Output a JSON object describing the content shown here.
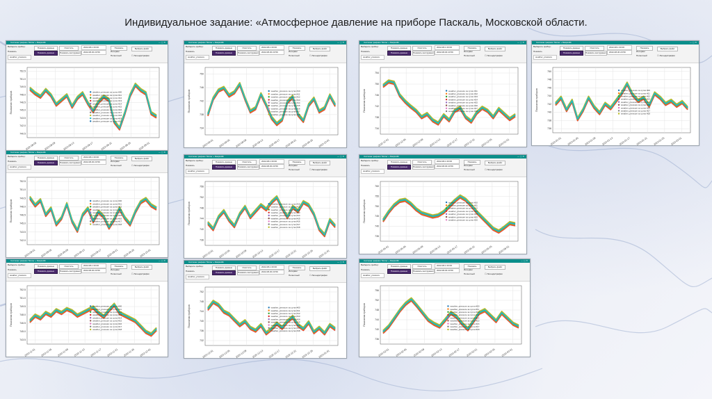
{
  "slide": {
    "title": "Индивидуальное задание: «Атмосферное давление на приборе Паскаль, Московской области."
  },
  "window": {
    "title": "Система графики Tkinter + Matplotlib",
    "label_device": "Выберите прибор:",
    "btn_show_data": "Показать данные",
    "btn_clear": "Очистить",
    "btn_show_instruments": "Показать инструменты",
    "label_show": "Показать",
    "selected_field": "weather_pressure",
    "date_start": "2022-08-1 00:00",
    "date_end": "2022-08-30 23:59",
    "btn_show": "Показать",
    "btn_choose_file": "Выбрать файл",
    "label_interval": "Интервал",
    "label_full": "Полнотный",
    "checkbox_label": "Легенда/график",
    "ylabel": "Показания приборов",
    "legend_prefix": "weather_pressure за сутки"
  },
  "chart_data": [
    {
      "type": "line",
      "ylabel": "Показания приборов",
      "legend_suffixes": [
        "#00",
        "#11",
        "#12",
        "#13",
        "#14",
        "#15",
        "#16",
        "#17",
        "#18",
        "#19",
        "#20"
      ],
      "series_colors": [
        "#1f77b4",
        "#ff7f0e",
        "#2ca02c",
        "#d62728",
        "#9467bd",
        "#8c564b",
        "#e377c2",
        "#7f7f7f",
        "#bcbd22",
        "#17becf"
      ],
      "y_ticks": [
        "752.5",
        "751.0",
        "749.5",
        "748.0",
        "746.5",
        "745.0",
        "743.5",
        "742.0",
        "740.5"
      ],
      "x_ticks": [
        "2022-08-05",
        "2022-08-09",
        "2022-08-13",
        "2022-08-17",
        "2022-08-21",
        "2022-08-25",
        "2022-09-01"
      ],
      "values": [
        0.72,
        0.65,
        0.6,
        0.7,
        0.62,
        0.48,
        0.55,
        0.62,
        0.45,
        0.58,
        0.65,
        0.5,
        0.38,
        0.52,
        0.6,
        0.55,
        0.22,
        0.12,
        0.35,
        0.62,
        0.78,
        0.7,
        0.65,
        0.35,
        0.3
      ]
    },
    {
      "type": "line",
      "ylabel": "Показания приборов",
      "legend_suffixes": [
        "#10",
        "#11",
        "#12",
        "#13",
        "#14",
        "#15",
        "#16",
        "#17",
        "#18"
      ],
      "series_colors": [
        "#1f77b4",
        "#ff7f0e",
        "#2ca02c",
        "#d62728",
        "#9467bd",
        "#8c564b",
        "#e377c2",
        "#7f7f7f",
        "#bcbd22",
        "#17becf"
      ],
      "y_ticks": [
        "750",
        "746",
        "742",
        "738",
        "734"
      ],
      "x_ticks": [
        "2022-09-01",
        "2022-09-05",
        "2022-09-09",
        "2022-09-13",
        "2022-09-17",
        "2022-09-21",
        "2022-09-25",
        "2022-10-01"
      ],
      "values": [
        0.3,
        0.55,
        0.68,
        0.72,
        0.6,
        0.65,
        0.78,
        0.55,
        0.35,
        0.4,
        0.62,
        0.45,
        0.25,
        0.15,
        0.22,
        0.5,
        0.58,
        0.3,
        0.2,
        0.45,
        0.55,
        0.35,
        0.4,
        0.6,
        0.45
      ]
    },
    {
      "type": "line",
      "ylabel": "Показания приборов",
      "legend_suffixes": [
        "#11",
        "#12",
        "#13",
        "#14",
        "#15",
        "#16",
        "#17",
        "#18"
      ],
      "series_colors": [
        "#1f77b4",
        "#ff7f0e",
        "#2ca02c",
        "#d62728",
        "#9467bd",
        "#8c564b",
        "#e377c2",
        "#7f7f7f",
        "#bcbd22",
        "#17becf"
      ],
      "y_ticks": [
        "754",
        "750",
        "746",
        "742",
        "738",
        "734"
      ],
      "x_ticks": [
        "2022-12-01",
        "2022-12-05",
        "2022-12-09",
        "2022-12-13",
        "2022-12-17",
        "2022-12-21",
        "2022-12-25",
        "2023-01-01"
      ],
      "values": [
        0.75,
        0.82,
        0.8,
        0.6,
        0.5,
        0.42,
        0.35,
        0.25,
        0.3,
        0.2,
        0.15,
        0.28,
        0.2,
        0.35,
        0.4,
        0.25,
        0.18,
        0.32,
        0.4,
        0.35,
        0.25,
        0.38,
        0.3,
        0.22,
        0.28
      ]
    },
    {
      "type": "line",
      "ylabel": "Показания приборов",
      "legend_suffixes": [
        "#00",
        "#11",
        "#12",
        "#13",
        "#14",
        "#15",
        "#16",
        "#17",
        "#18"
      ],
      "series_colors": [
        "#1f77b4",
        "#ff7f0e",
        "#2ca02c",
        "#d62728",
        "#9467bd",
        "#8c564b",
        "#e377c2",
        "#7f7f7f",
        "#bcbd22",
        "#17becf"
      ],
      "y_ticks": [
        "750",
        "748",
        "746",
        "744",
        "742",
        "740",
        "738",
        "736"
      ],
      "x_ticks": [
        "2023-01-01",
        "2023-01-05",
        "2023-01-09",
        "2023-01-13",
        "2023-01-17",
        "2023-01-21",
        "2023-01-25",
        "2023-02-01"
      ],
      "values": [
        0.45,
        0.55,
        0.35,
        0.5,
        0.2,
        0.35,
        0.55,
        0.4,
        0.3,
        0.45,
        0.38,
        0.5,
        0.62,
        0.78,
        0.6,
        0.5,
        0.55,
        0.42,
        0.62,
        0.55,
        0.45,
        0.5,
        0.42,
        0.48,
        0.38
      ]
    },
    {
      "type": "line",
      "ylabel": "Показания приборов",
      "legend_suffixes": [
        "#00",
        "#11",
        "#12",
        "#13",
        "#14",
        "#15",
        "#16",
        "#17",
        "#18"
      ],
      "series_colors": [
        "#1f77b4",
        "#ff7f0e",
        "#2ca02c",
        "#d62728",
        "#9467bd",
        "#8c564b",
        "#e377c2",
        "#7f7f7f",
        "#bcbd22",
        "#17becf"
      ],
      "y_ticks": [
        "752.5",
        "751.0",
        "749.5",
        "748.0",
        "746.5",
        "745.0",
        "743.5",
        "742.0"
      ],
      "x_ticks": [
        "2022-09-01",
        "2022-09-05",
        "2022-09-09",
        "2022-09-13",
        "2022-09-17",
        "2022-09-21",
        "2022-09-25",
        "2022-10-01"
      ],
      "values": [
        0.72,
        0.6,
        0.68,
        0.45,
        0.55,
        0.3,
        0.4,
        0.62,
        0.35,
        0.2,
        0.45,
        0.55,
        0.35,
        0.5,
        0.42,
        0.25,
        0.38,
        0.55,
        0.4,
        0.3,
        0.5,
        0.65,
        0.7,
        0.6,
        0.55
      ]
    },
    {
      "type": "line",
      "ylabel": "Показания приборов",
      "legend_suffixes": [
        "#10",
        "#11",
        "#12",
        "#13",
        "#14",
        "#15",
        "#16",
        "#17",
        "#18"
      ],
      "series_colors": [
        "#1f77b4",
        "#ff7f0e",
        "#2ca02c",
        "#d62728",
        "#9467bd",
        "#8c564b",
        "#e377c2",
        "#7f7f7f",
        "#bcbd22",
        "#17becf"
      ],
      "y_ticks": [
        "756",
        "752",
        "748",
        "744",
        "740",
        "736"
      ],
      "x_ticks": [
        "2022-10-01",
        "2022-10-05",
        "2022-10-09",
        "2022-10-13",
        "2022-10-17",
        "2022-10-21",
        "2022-10-25",
        "2022-11-01"
      ],
      "values": [
        0.35,
        0.25,
        0.45,
        0.55,
        0.4,
        0.3,
        0.5,
        0.62,
        0.45,
        0.55,
        0.65,
        0.58,
        0.7,
        0.78,
        0.6,
        0.45,
        0.62,
        0.55,
        0.7,
        0.65,
        0.5,
        0.25,
        0.15,
        0.4,
        0.3
      ]
    },
    {
      "type": "line",
      "ylabel": "Показания приборов",
      "legend_suffixes": [
        "#10",
        "#11",
        "#12",
        "#13",
        "#14",
        "#15",
        "#16"
      ],
      "series_colors": [
        "#1f77b4",
        "#ff7f0e",
        "#2ca02c",
        "#d62728",
        "#9467bd",
        "#8c564b",
        "#e377c2",
        "#7f7f7f",
        "#bcbd22",
        "#17becf"
      ],
      "y_ticks": [
        "760",
        "755",
        "750",
        "745",
        "740",
        "735"
      ],
      "x_ticks": [
        "2022-05-01",
        "2022-05-05",
        "2022-05-09",
        "2022-05-13",
        "2022-05-17",
        "2022-05-21",
        "2022-05-25",
        "2022-06-01"
      ],
      "values": [
        0.35,
        0.5,
        0.62,
        0.7,
        0.72,
        0.65,
        0.55,
        0.48,
        0.45,
        0.42,
        0.44,
        0.5,
        0.6,
        0.7,
        0.78,
        0.72,
        0.62,
        0.5,
        0.4,
        0.3,
        0.2,
        0.15,
        0.22,
        0.3,
        0.28
      ]
    },
    {
      "type": "line",
      "ylabel": "Показания приборов",
      "legend_suffixes": [
        "#00",
        "#11",
        "#12",
        "#13",
        "#14",
        "#15",
        "#16",
        "#17",
        "#18"
      ],
      "series_colors": [
        "#1f77b4",
        "#ff7f0e",
        "#2ca02c",
        "#d62728",
        "#9467bd",
        "#8c564b",
        "#e377c2",
        "#7f7f7f",
        "#bcbd22",
        "#17becf"
      ],
      "y_ticks": [
        "752.5",
        "751.0",
        "749.5",
        "748.0",
        "746.5",
        "745.0",
        "743.5"
      ],
      "x_ticks": [
        "2022-11-01",
        "2022-11-05",
        "2022-11-09",
        "2022-11-13",
        "2022-11-17",
        "2022-11-21",
        "2022-11-25",
        "2022-12-01"
      ],
      "values": [
        0.4,
        0.5,
        0.45,
        0.55,
        0.5,
        0.6,
        0.55,
        0.62,
        0.58,
        0.5,
        0.55,
        0.6,
        0.65,
        0.55,
        0.48,
        0.6,
        0.7,
        0.55,
        0.5,
        0.45,
        0.4,
        0.3,
        0.2,
        0.15,
        0.25
      ]
    },
    {
      "type": "line",
      "ylabel": "Показания приборов",
      "legend_suffixes": [
        "#00",
        "#11",
        "#12",
        "#13",
        "#14",
        "#15",
        "#16",
        "#17",
        "#18"
      ],
      "series_colors": [
        "#1f77b4",
        "#ff7f0e",
        "#2ca02c",
        "#d62728",
        "#9467bd",
        "#8c564b",
        "#e377c2",
        "#7f7f7f",
        "#bcbd22",
        "#17becf"
      ],
      "y_ticks": [
        "752",
        "748",
        "744",
        "740",
        "736",
        "732"
      ],
      "x_ticks": [
        "2022-12-01",
        "2022-12-05",
        "2022-12-09",
        "2022-12-13",
        "2022-12-17",
        "2022-12-21",
        "2022-12-25",
        "2023-01-01"
      ],
      "values": [
        0.65,
        0.78,
        0.72,
        0.6,
        0.55,
        0.45,
        0.35,
        0.42,
        0.3,
        0.25,
        0.35,
        0.2,
        0.28,
        0.38,
        0.3,
        0.42,
        0.5,
        0.35,
        0.28,
        0.4,
        0.22,
        0.3,
        0.2,
        0.35,
        0.28
      ]
    },
    {
      "type": "line",
      "ylabel": "Показания приборов",
      "legend_suffixes": [
        "#00",
        "#11",
        "#12",
        "#13",
        "#14",
        "#15",
        "#16",
        "#17",
        "#18"
      ],
      "series_colors": [
        "#1f77b4",
        "#ff7f0e",
        "#2ca02c",
        "#d62728",
        "#9467bd",
        "#8c564b",
        "#e377c2",
        "#7f7f7f",
        "#bcbd22",
        "#17becf"
      ],
      "y_ticks": [
        "756",
        "752",
        "748",
        "744",
        "740",
        "736"
      ],
      "x_ticks": [
        "2023-02-01",
        "2023-02-05",
        "2023-02-09",
        "2023-02-13",
        "2023-02-17",
        "2023-02-21",
        "2023-02-25",
        "2023-03-01"
      ],
      "values": [
        0.2,
        0.3,
        0.45,
        0.6,
        0.72,
        0.8,
        0.68,
        0.55,
        0.42,
        0.35,
        0.3,
        0.42,
        0.55,
        0.48,
        0.35,
        0.25,
        0.4,
        0.55,
        0.6,
        0.5,
        0.4,
        0.55,
        0.45,
        0.35,
        0.3
      ]
    }
  ]
}
